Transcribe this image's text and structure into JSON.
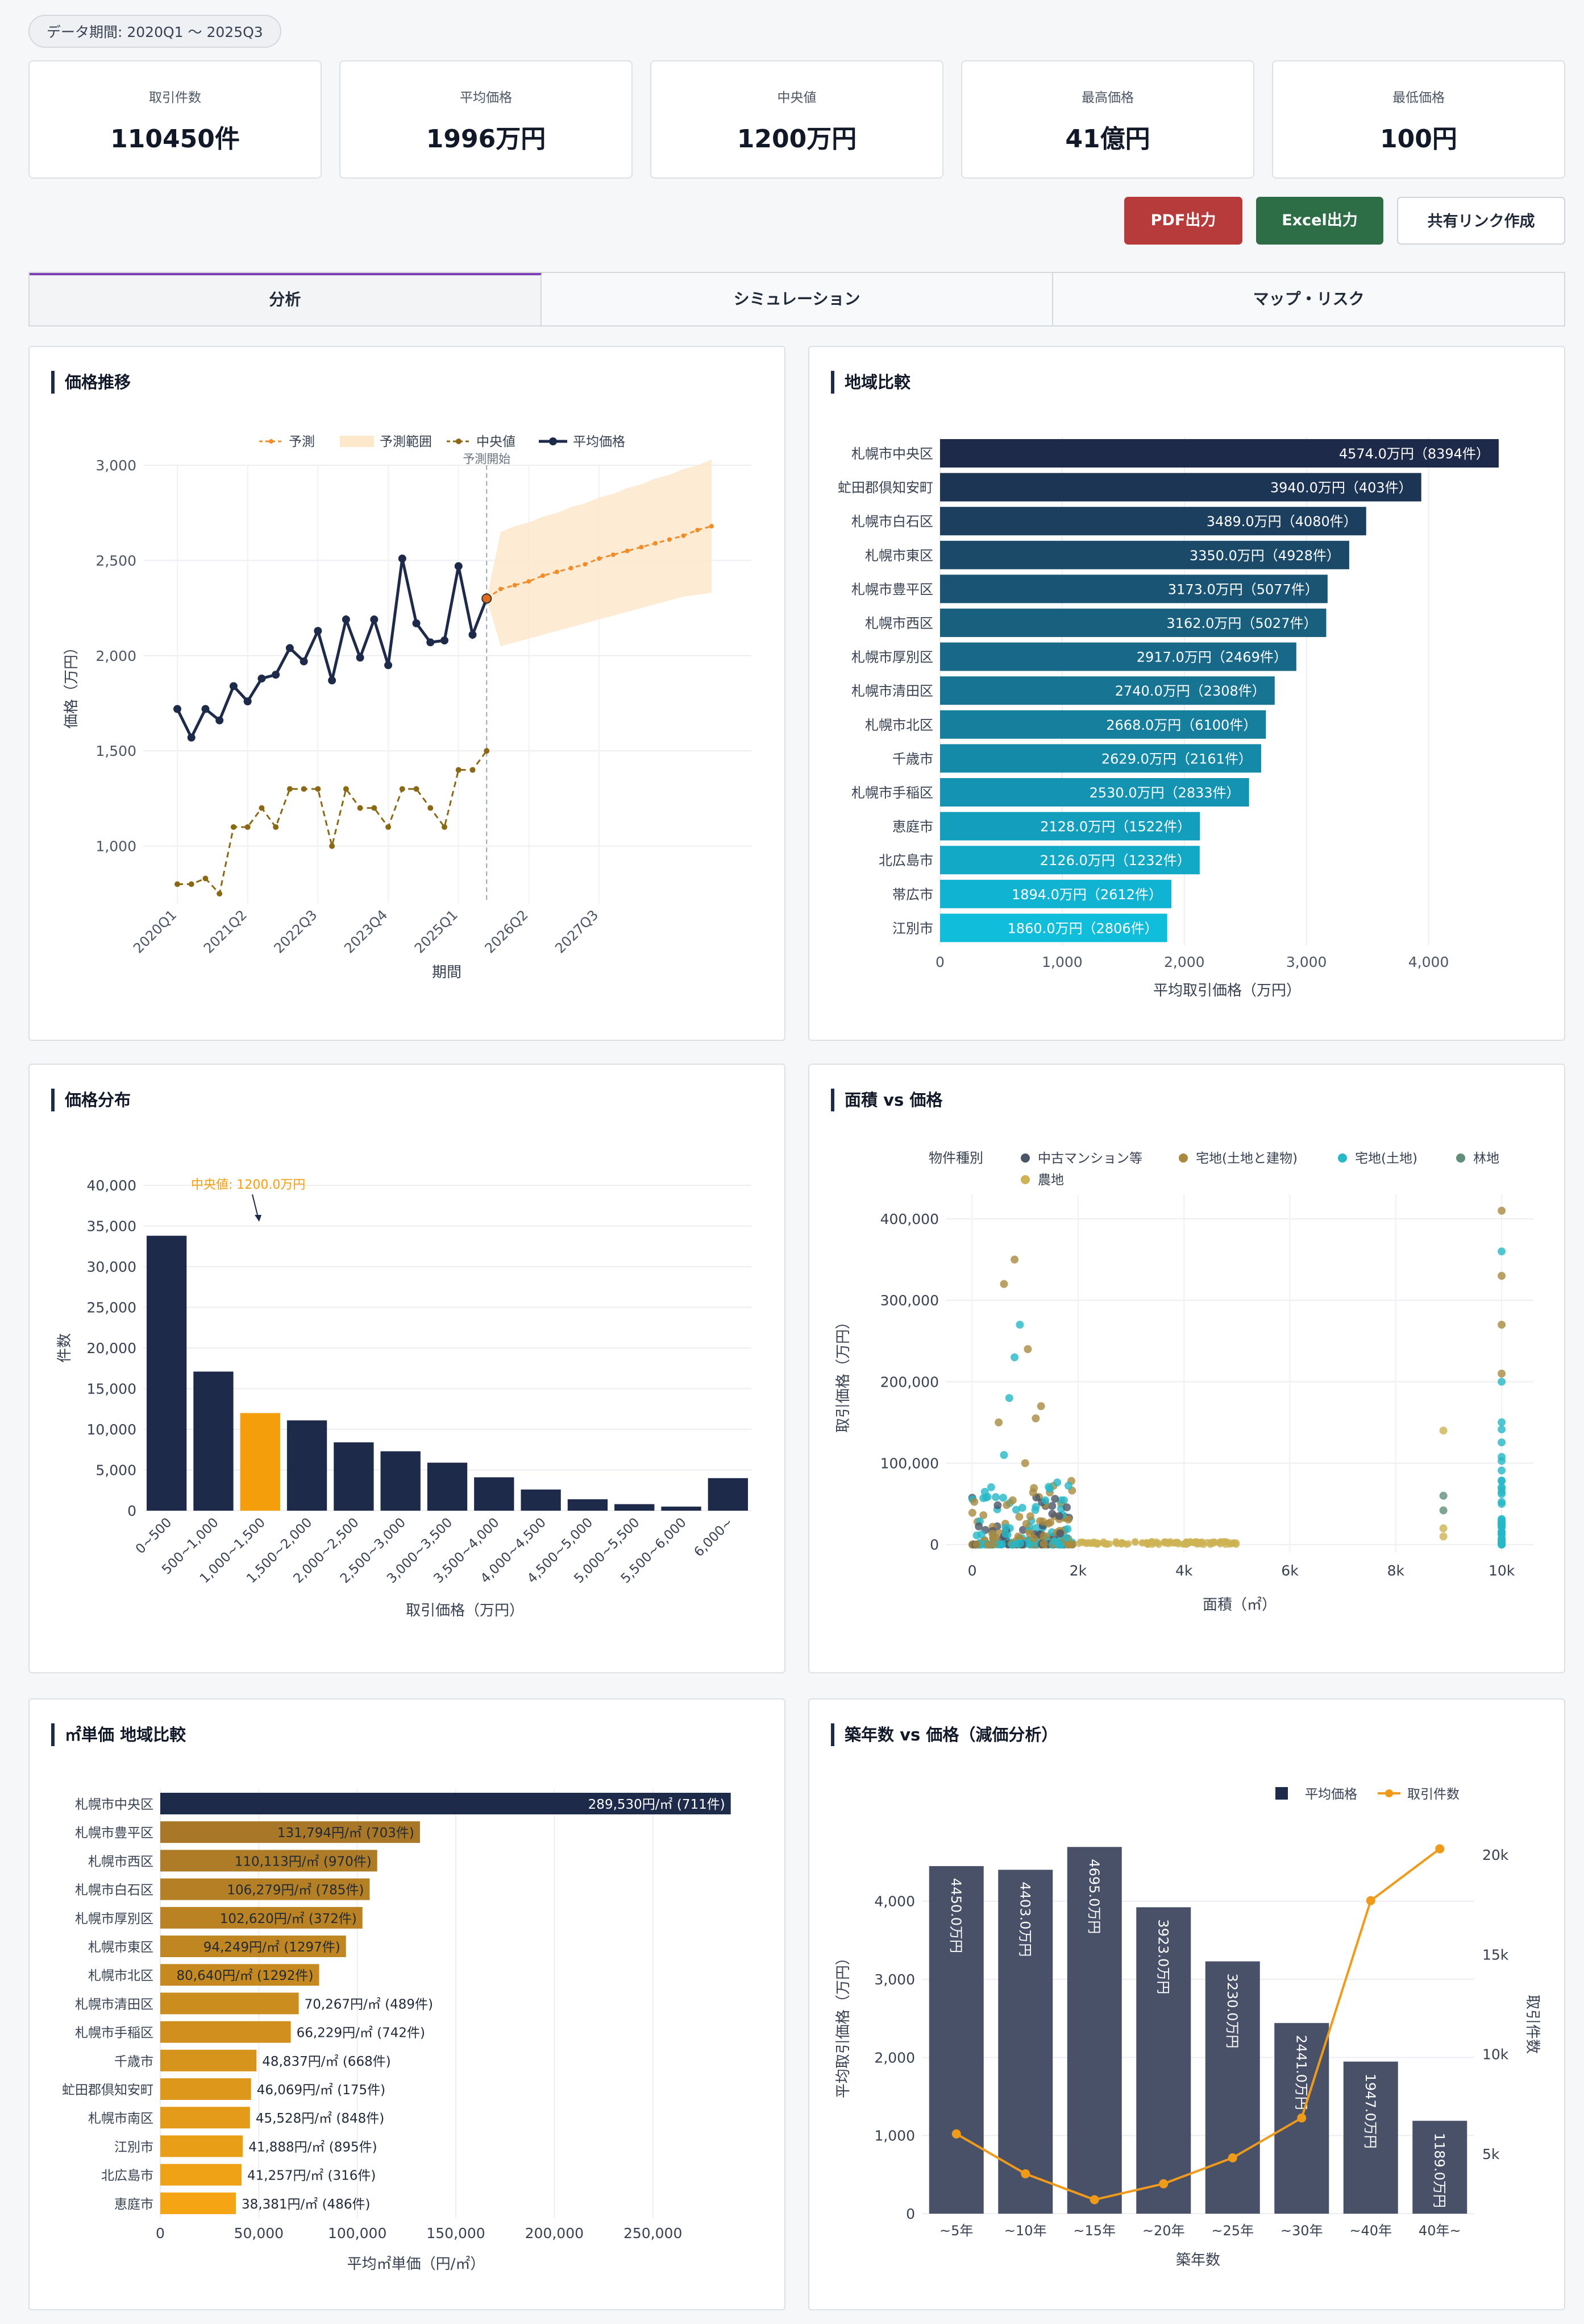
{
  "header": {
    "period_badge": "データ期間: 2020Q1 〜 2025Q3"
  },
  "kpis": [
    {
      "label": "取引件数",
      "value": "110450件"
    },
    {
      "label": "平均価格",
      "value": "1996万円"
    },
    {
      "label": "中央値",
      "value": "1200万円"
    },
    {
      "label": "最高価格",
      "value": "41億円"
    },
    {
      "label": "最低価格",
      "value": "100円"
    }
  ],
  "actions": {
    "pdf": "PDF出力",
    "excel": "Excel出力",
    "share": "共有リンク作成"
  },
  "tabs": [
    {
      "label": "分析",
      "active": true
    },
    {
      "label": "シミュレーション",
      "active": false
    },
    {
      "label": "マップ・リスク",
      "active": false
    }
  ],
  "colors": {
    "navy": "#1e2a4a",
    "orange": "#f59e0b",
    "brown": "#8b6914",
    "forecast": "#f28c28"
  },
  "panels": {
    "trend": {
      "title": "価格推移"
    },
    "region": {
      "title": "地域比較"
    },
    "dist": {
      "title": "価格分布"
    },
    "scatter": {
      "title": "面積 vs 価格"
    },
    "unit": {
      "title": "㎡単価 地域比較"
    },
    "age": {
      "title": "築年数 vs 価格（減価分析）"
    }
  },
  "chart_data": [
    {
      "id": "trend",
      "type": "line",
      "xlabel": "期間",
      "ylabel": "価格（万円）",
      "ylim": [
        700,
        3000
      ],
      "yticks": [
        1000,
        1500,
        2000,
        2500,
        3000
      ],
      "xticks": [
        "2020Q1",
        "2021Q2",
        "2022Q3",
        "2023Q4",
        "2025Q1",
        "2026Q2",
        "2027Q3"
      ],
      "xtick_index": [
        0,
        5,
        10,
        15,
        20,
        25,
        30
      ],
      "legend": [
        "予測",
        "予測範囲",
        "中央値",
        "平均価格"
      ],
      "annotation": "予測開始",
      "forecast_start_index": 22,
      "series": [
        {
          "name": "平均価格",
          "values": [
            1720,
            1570,
            1720,
            1660,
            1840,
            1760,
            1880,
            1900,
            2040,
            1970,
            2130,
            1870,
            2190,
            1990,
            2190,
            1950,
            2510,
            2170,
            2070,
            2080,
            2470,
            2110,
            2300
          ]
        },
        {
          "name": "中央値",
          "values": [
            800,
            800,
            830,
            750,
            1100,
            1100,
            1200,
            1100,
            1300,
            1300,
            1300,
            1000,
            1300,
            1200,
            1200,
            1100,
            1300,
            1300,
            1200,
            1100,
            1400,
            1400,
            1500
          ]
        },
        {
          "name": "予測",
          "start_index": 22,
          "values": [
            2300,
            2350,
            2370,
            2390,
            2420,
            2440,
            2460,
            2480,
            2510,
            2530,
            2550,
            2570,
            2590,
            2610,
            2630,
            2660,
            2680
          ]
        },
        {
          "name": "予測範囲",
          "start_index": 22,
          "lower": [
            2300,
            2050,
            2070,
            2090,
            2110,
            2130,
            2150,
            2170,
            2190,
            2210,
            2230,
            2250,
            2270,
            2290,
            2310,
            2320,
            2330
          ],
          "upper": [
            2300,
            2650,
            2680,
            2700,
            2730,
            2750,
            2780,
            2800,
            2830,
            2850,
            2880,
            2900,
            2930,
            2950,
            2980,
            3000,
            3030
          ]
        }
      ]
    },
    {
      "id": "region",
      "type": "bar",
      "orientation": "horizontal",
      "xlabel": "平均取引価格（万円）",
      "xlim": [
        0,
        4700
      ],
      "xticks": [
        0,
        1000,
        2000,
        3000,
        4000
      ],
      "categories": [
        "札幌市中央区",
        "虻田郡倶知安町",
        "札幌市白石区",
        "札幌市東区",
        "札幌市豊平区",
        "札幌市西区",
        "札幌市厚別区",
        "札幌市清田区",
        "札幌市北区",
        "千歳市",
        "札幌市手稲区",
        "恵庭市",
        "北広島市",
        "帯広市",
        "江別市"
      ],
      "values": [
        4574.0,
        3940.0,
        3489.0,
        3350.0,
        3173.0,
        3162.0,
        2917.0,
        2740.0,
        2668.0,
        2629.0,
        2530.0,
        2128.0,
        2126.0,
        1894.0,
        1860.0
      ],
      "labels": [
        "4574.0万円（8394件）",
        "3940.0万円（403件）",
        "3489.0万円（4080件）",
        "3350.0万円（4928件）",
        "3173.0万円（5077件）",
        "3162.0万円（5027件）",
        "2917.0万円（2469件）",
        "2740.0万円（2308件）",
        "2668.0万円（6100件）",
        "2629.0万円（2161件）",
        "2530.0万円（2833件）",
        "2128.0万円（1522件）",
        "2126.0万円（1232件）",
        "1894.0万円（2612件）",
        "1860.0万円（2806件）"
      ]
    },
    {
      "id": "dist",
      "type": "bar",
      "xlabel": "取引価格（万円）",
      "ylabel": "件数",
      "ylim": [
        0,
        40000
      ],
      "yticks": [
        0,
        5000,
        10000,
        15000,
        20000,
        25000,
        30000,
        35000,
        40000
      ],
      "categories": [
        "0~500",
        "500~1,000",
        "1,000~1,500",
        "1,500~2,000",
        "2,000~2,500",
        "2,500~3,000",
        "3,000~3,500",
        "3,500~4,000",
        "4,000~4,500",
        "4,500~5,000",
        "5,000~5,500",
        "5,500~6,000",
        "6,000~"
      ],
      "values": [
        33800,
        17100,
        12000,
        11100,
        8400,
        7300,
        5900,
        4100,
        2600,
        1400,
        800,
        500,
        4000
      ],
      "highlight_index": 2,
      "annotation": "中央値: 1200.0万円"
    },
    {
      "id": "scatter",
      "type": "scatter",
      "xlabel": "面積（㎡）",
      "ylabel": "取引価格（万円）",
      "xlim": [
        -500,
        10600
      ],
      "ylim": [
        -10000,
        430000
      ],
      "xticks": [
        0,
        2000,
        4000,
        6000,
        8000,
        10000
      ],
      "xtick_labels": [
        "0",
        "2k",
        "4k",
        "6k",
        "8k",
        "10k"
      ],
      "yticks": [
        0,
        100000,
        200000,
        300000,
        400000
      ],
      "legend_title": "物件種別",
      "series": [
        {
          "name": "中古マンション等",
          "color": "#4b5568"
        },
        {
          "name": "宅地(土地と建物)",
          "color": "#a9893f"
        },
        {
          "name": "宅地(土地)",
          "color": "#26b8c8"
        },
        {
          "name": "林地",
          "color": "#5f8f78"
        },
        {
          "name": "農地",
          "color": "#cdb354"
        }
      ]
    },
    {
      "id": "unit",
      "type": "bar",
      "orientation": "horizontal",
      "xlabel": "平均㎡単価（円/㎡）",
      "xlim": [
        0,
        300000
      ],
      "xticks": [
        0,
        50000,
        100000,
        150000,
        200000,
        250000
      ],
      "categories": [
        "札幌市中央区",
        "札幌市豊平区",
        "札幌市西区",
        "札幌市白石区",
        "札幌市厚別区",
        "札幌市東区",
        "札幌市北区",
        "札幌市清田区",
        "札幌市手稲区",
        "千歳市",
        "虻田郡倶知安町",
        "札幌市南区",
        "江別市",
        "北広島市",
        "恵庭市"
      ],
      "values": [
        289530,
        131794,
        110113,
        106279,
        102620,
        94249,
        80640,
        70267,
        66229,
        48837,
        46069,
        45528,
        41888,
        41257,
        38381
      ],
      "labels": [
        "289,530円/㎡ (711件)",
        "131,794円/㎡ (703件)",
        "110,113円/㎡ (970件)",
        "106,279円/㎡ (785件)",
        "102,620円/㎡ (372件)",
        "94,249円/㎡ (1297件)",
        "80,640円/㎡ (1292件)",
        "70,267円/㎡ (489件)",
        "66,229円/㎡ (742件)",
        "48,837円/㎡ (668件)",
        "46,069円/㎡ (175件)",
        "45,528円/㎡ (848件)",
        "41,888円/㎡ (895件)",
        "41,257円/㎡ (316件)",
        "38,381円/㎡ (486件)"
      ]
    },
    {
      "id": "age",
      "type": "bar",
      "xlabel": "築年数",
      "ylabel": "平均取引価格（万円）",
      "y2label": "取引件数",
      "ylim": [
        0,
        4850
      ],
      "y2lim": [
        2000,
        21000
      ],
      "yticks": [
        0,
        1000,
        2000,
        3000,
        4000
      ],
      "y2ticks": [
        5000,
        10000,
        15000,
        20000
      ],
      "y2tick_labels": [
        "5k",
        "10k",
        "15k",
        "20k"
      ],
      "categories": [
        "~5年",
        "~10年",
        "~15年",
        "~20年",
        "~25年",
        "~30年",
        "~40年",
        "40年~"
      ],
      "series": [
        {
          "name": "平均価格",
          "values": [
            4450.0,
            4403.0,
            4695.0,
            3923.0,
            3230.0,
            2441.0,
            1947.0,
            1189.0
          ],
          "labels": [
            "4450.0万円",
            "4403.0万円",
            "4695.0万円",
            "3923.0万円",
            "3230.0万円",
            "2441.0万円",
            "1947.0万円",
            "1189.0万円"
          ]
        },
        {
          "name": "取引件数",
          "values": [
            6000,
            4000,
            2700,
            3500,
            4800,
            6800,
            17700,
            20300
          ]
        }
      ]
    }
  ]
}
